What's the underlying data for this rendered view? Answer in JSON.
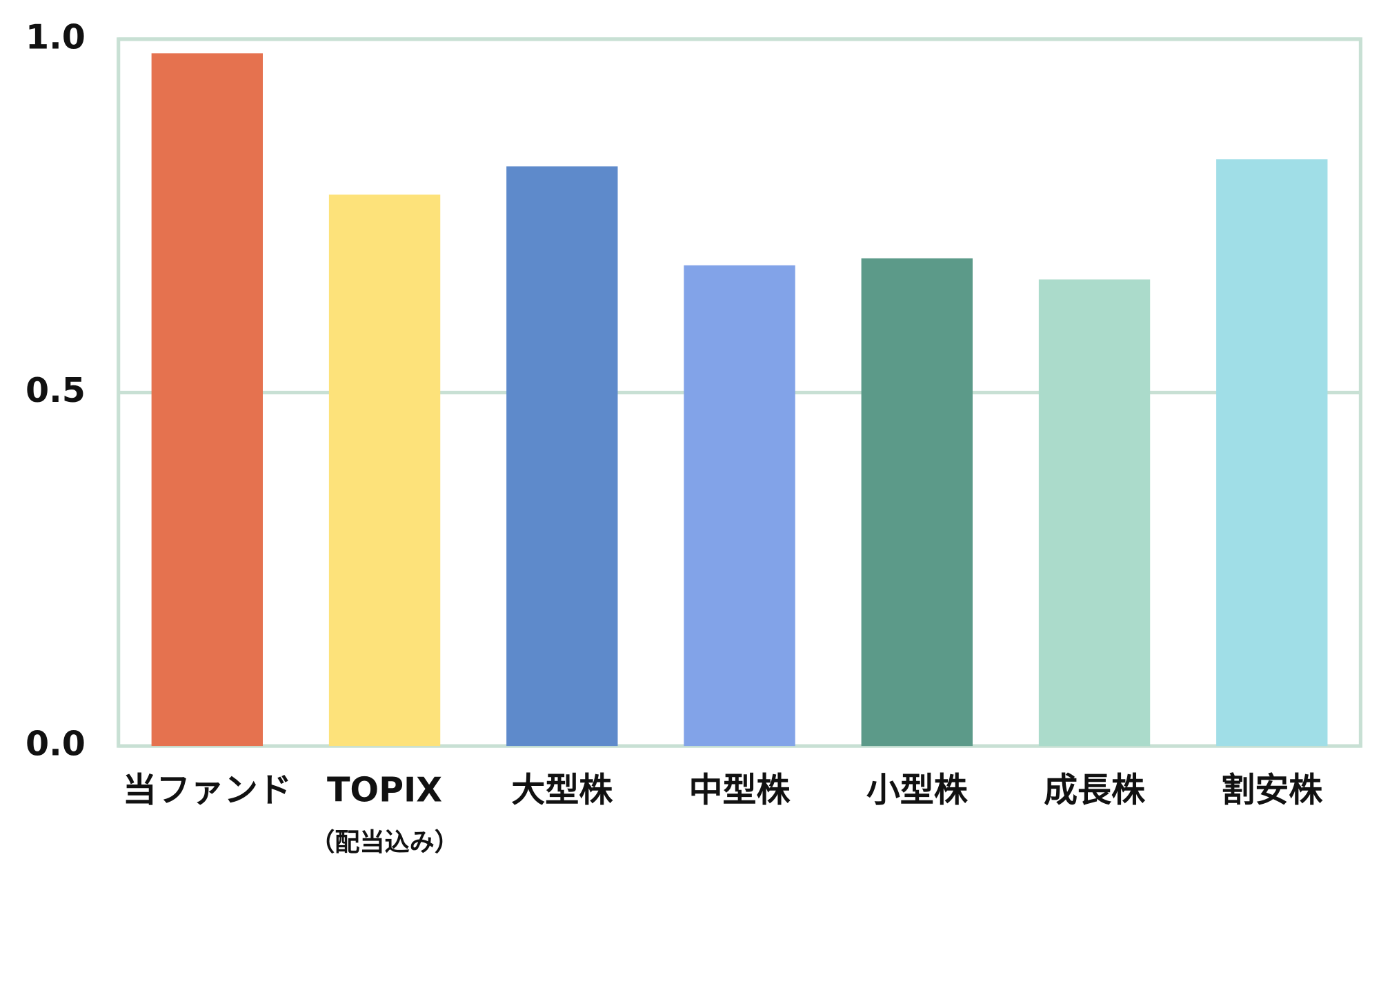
{
  "chart_data": {
    "type": "bar",
    "categories": [
      "当ファンド",
      "TOPIX",
      "大型株",
      "中型株",
      "小型株",
      "成長株",
      "割安株"
    ],
    "category_notes": [
      null,
      "（配当込み）",
      null,
      null,
      null,
      null,
      null
    ],
    "values": [
      0.98,
      0.78,
      0.82,
      0.68,
      0.69,
      0.66,
      0.83
    ],
    "colors": [
      "#e5724f",
      "#fde27a",
      "#5e8acb",
      "#82a3e8",
      "#5c9a89",
      "#abdbcb",
      "#a0dee7"
    ],
    "ylim": [
      0,
      1
    ],
    "yticks": [
      {
        "value": 0,
        "label": "0.0"
      },
      {
        "value": 0.5,
        "label": "0.5"
      },
      {
        "value": 1,
        "label": "1.0"
      }
    ],
    "grid": true
  }
}
